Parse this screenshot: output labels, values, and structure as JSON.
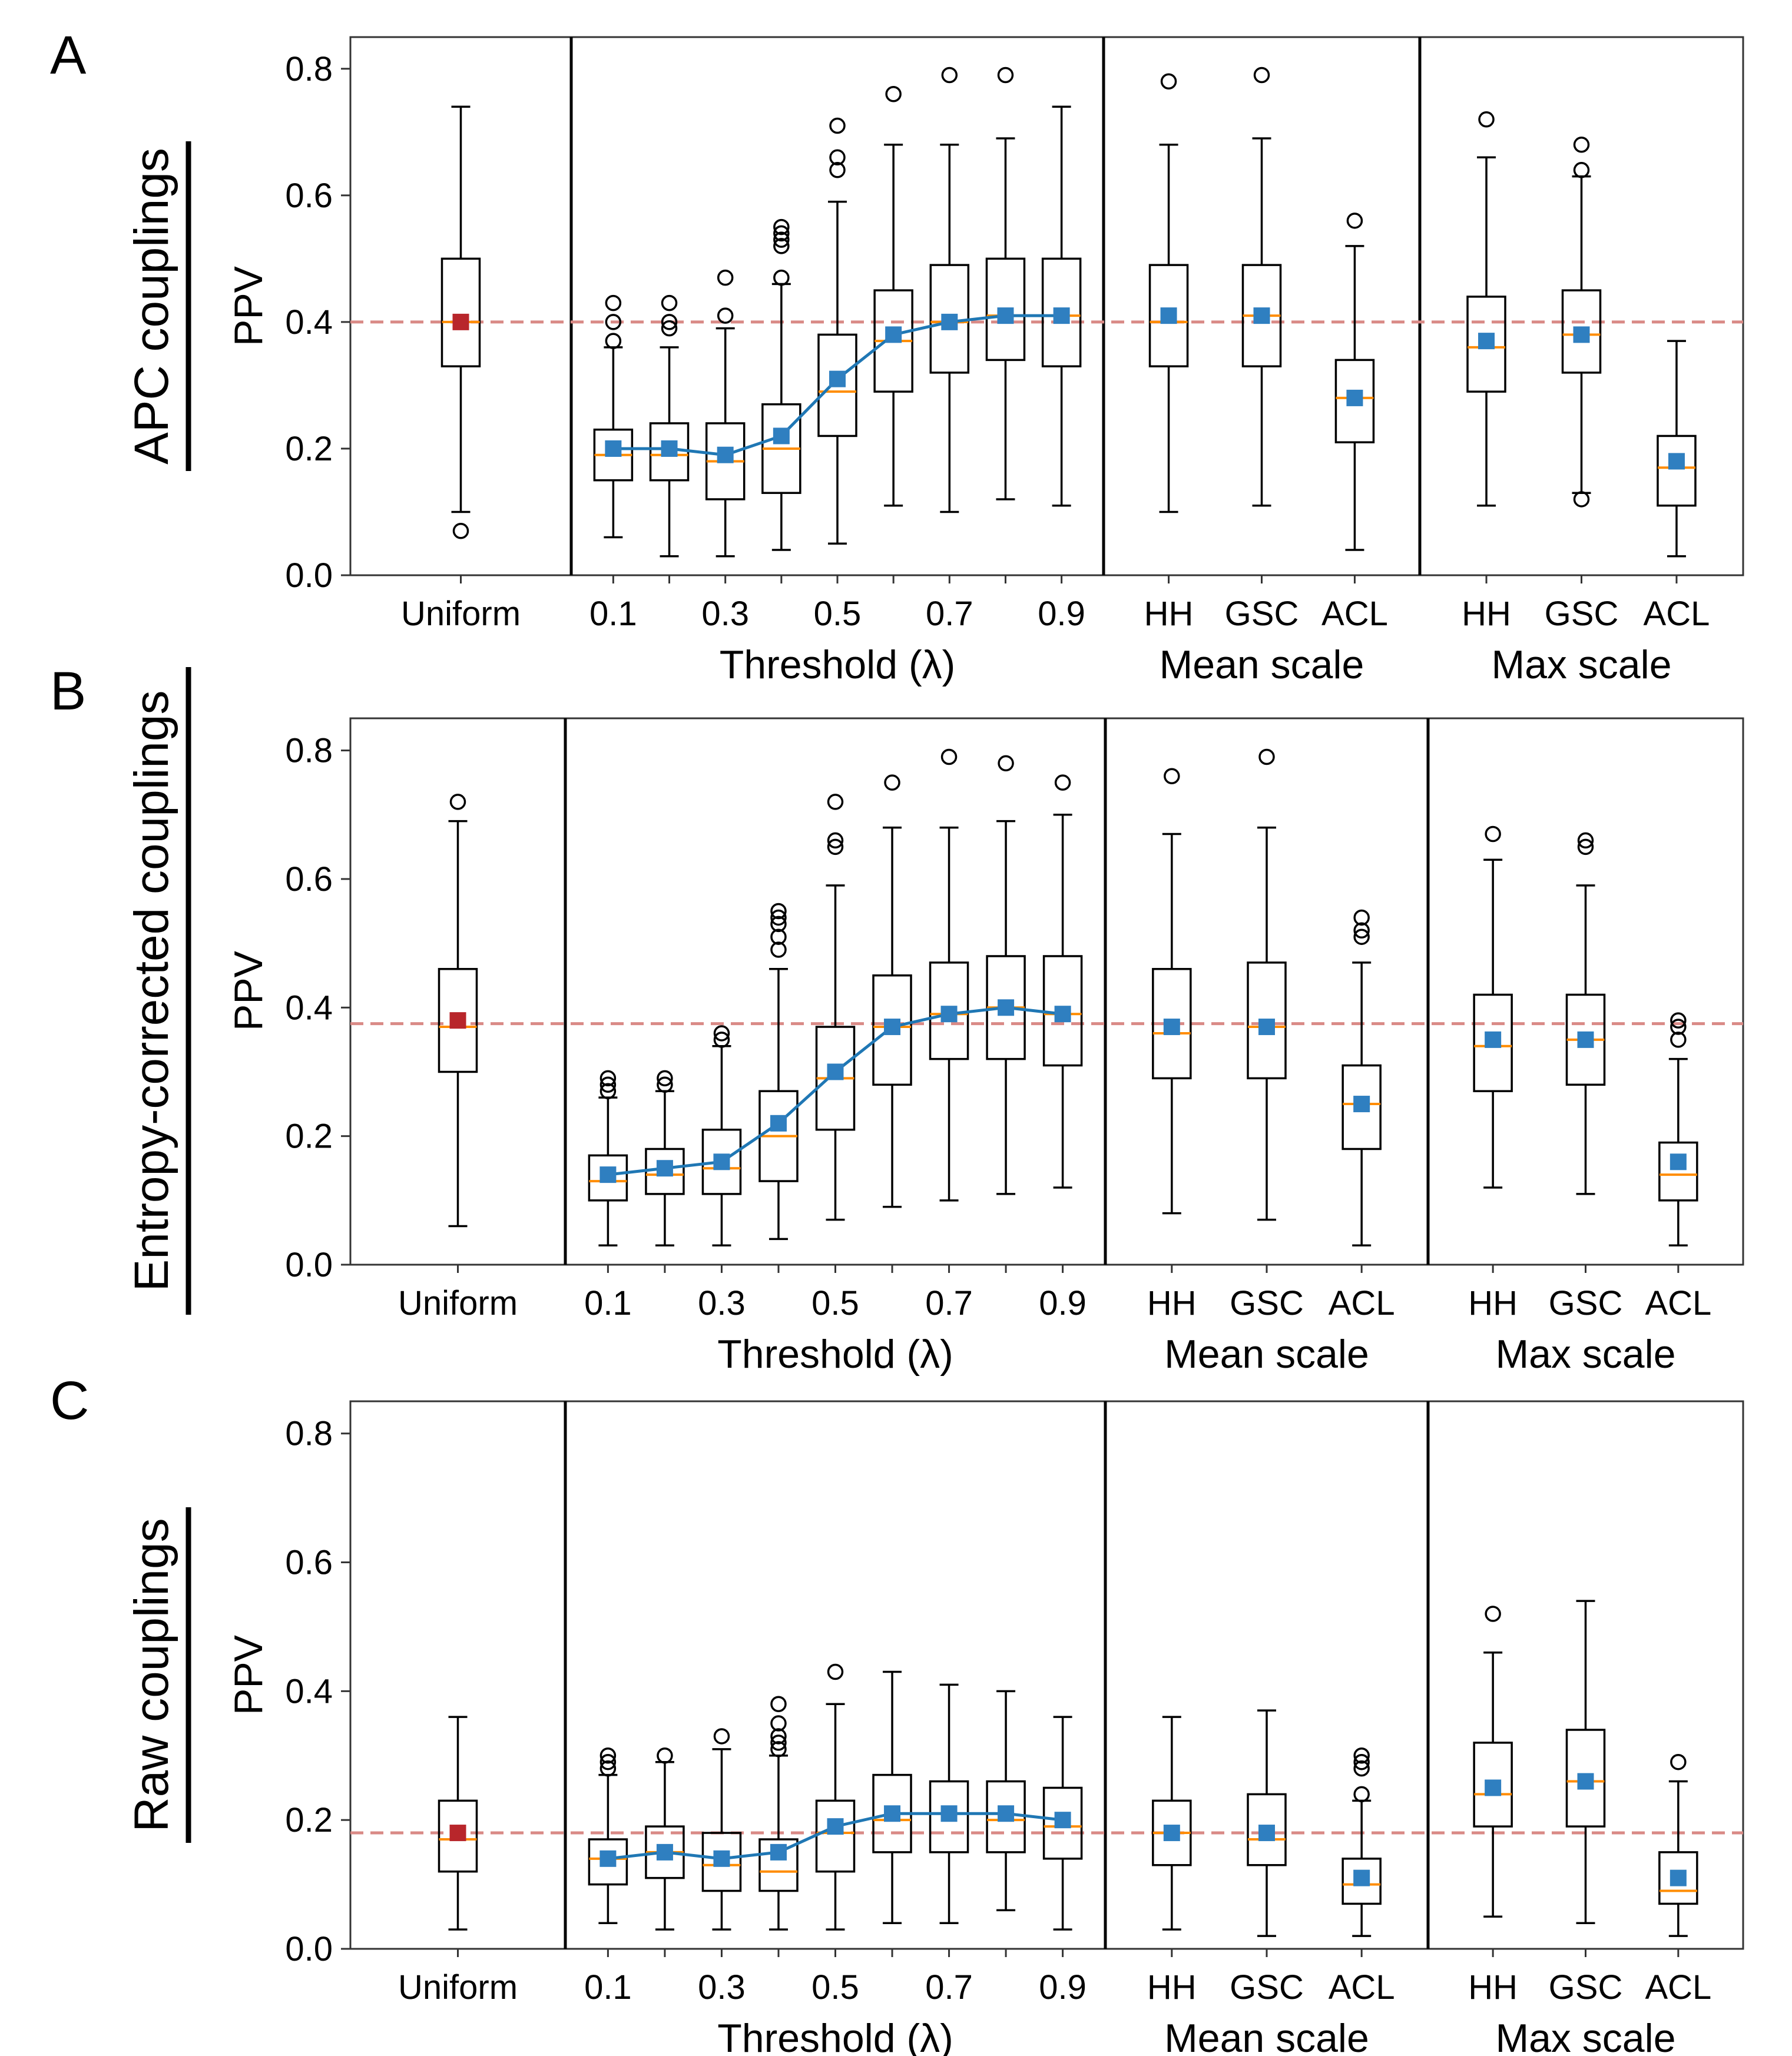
{
  "figure": {
    "colors": {
      "baseline_marker": "#b8262b",
      "mean_marker": "#2f7fc0",
      "line": "#1f77b4",
      "median": "#ff8c00",
      "reference_line": "#d98a86",
      "axes": "#000000"
    },
    "y_axis": {
      "label": "PPV",
      "ylim": [
        0,
        0.85
      ],
      "ticks": [
        0.0,
        0.2,
        0.4,
        0.6,
        0.8
      ],
      "tick_labels": [
        "0.0",
        "0.2",
        "0.4",
        "0.6",
        "0.8"
      ]
    },
    "groups": [
      {
        "id": "uniform",
        "xlabel": "",
        "categories": [
          "Uniform"
        ],
        "tick_labels": [
          "Uniform"
        ]
      },
      {
        "id": "threshold",
        "xlabel": "Threshold (λ)",
        "categories": [
          "0.1",
          "0.2",
          "0.3",
          "0.4",
          "0.5",
          "0.6",
          "0.7",
          "0.8",
          "0.9"
        ],
        "tick_labels": [
          "0.1",
          "",
          "0.3",
          "",
          "0.5",
          "",
          "0.7",
          "",
          "0.9"
        ]
      },
      {
        "id": "mean",
        "xlabel": "Mean scale",
        "categories": [
          "HH",
          "GSC",
          "ACL"
        ],
        "tick_labels": [
          "HH",
          "GSC",
          "ACL"
        ]
      },
      {
        "id": "max",
        "xlabel": "Max scale",
        "categories": [
          "HH",
          "GSC",
          "ACL"
        ],
        "tick_labels": [
          "HH",
          "GSC",
          "ACL"
        ]
      }
    ]
  },
  "chart_data": [
    {
      "type": "box",
      "panel_letter": "A",
      "title": "APC couplings",
      "ylabel": "PPV",
      "ylim": [
        0,
        0.85
      ],
      "reference_value": 0.4,
      "series": {
        "uniform": [
          {
            "cat": "Uniform",
            "wlo": 0.1,
            "q1": 0.33,
            "med": 0.4,
            "q3": 0.5,
            "whi": 0.74,
            "mean": 0.4,
            "fliers": [
              0.07
            ]
          }
        ],
        "threshold": [
          {
            "cat": "0.1",
            "wlo": 0.06,
            "q1": 0.15,
            "med": 0.19,
            "q3": 0.23,
            "whi": 0.36,
            "mean": 0.2,
            "fliers": [
              0.37,
              0.4,
              0.43
            ]
          },
          {
            "cat": "0.2",
            "wlo": 0.03,
            "q1": 0.15,
            "med": 0.19,
            "q3": 0.24,
            "whi": 0.36,
            "mean": 0.2,
            "fliers": [
              0.39,
              0.4,
              0.43
            ]
          },
          {
            "cat": "0.3",
            "wlo": 0.03,
            "q1": 0.12,
            "med": 0.18,
            "q3": 0.24,
            "whi": 0.39,
            "mean": 0.19,
            "fliers": [
              0.41,
              0.47
            ]
          },
          {
            "cat": "0.4",
            "wlo": 0.04,
            "q1": 0.13,
            "med": 0.2,
            "q3": 0.27,
            "whi": 0.46,
            "mean": 0.22,
            "fliers": [
              0.47,
              0.52,
              0.53,
              0.54,
              0.55
            ]
          },
          {
            "cat": "0.5",
            "wlo": 0.05,
            "q1": 0.22,
            "med": 0.29,
            "q3": 0.38,
            "whi": 0.59,
            "mean": 0.31,
            "fliers": [
              0.64,
              0.66,
              0.71
            ]
          },
          {
            "cat": "0.6",
            "wlo": 0.11,
            "q1": 0.29,
            "med": 0.37,
            "q3": 0.45,
            "whi": 0.68,
            "mean": 0.38,
            "fliers": [
              0.76
            ]
          },
          {
            "cat": "0.7",
            "wlo": 0.1,
            "q1": 0.32,
            "med": 0.4,
            "q3": 0.49,
            "whi": 0.68,
            "mean": 0.4,
            "fliers": [
              0.79
            ]
          },
          {
            "cat": "0.8",
            "wlo": 0.12,
            "q1": 0.34,
            "med": 0.41,
            "q3": 0.5,
            "whi": 0.69,
            "mean": 0.41,
            "fliers": [
              0.79
            ]
          },
          {
            "cat": "0.9",
            "wlo": 0.11,
            "q1": 0.33,
            "med": 0.41,
            "q3": 0.5,
            "whi": 0.74,
            "mean": 0.41,
            "fliers": []
          }
        ],
        "mean": [
          {
            "cat": "HH",
            "wlo": 0.1,
            "q1": 0.33,
            "med": 0.4,
            "q3": 0.49,
            "whi": 0.68,
            "mean": 0.41,
            "fliers": [
              0.78
            ]
          },
          {
            "cat": "GSC",
            "wlo": 0.11,
            "q1": 0.33,
            "med": 0.41,
            "q3": 0.49,
            "whi": 0.69,
            "mean": 0.41,
            "fliers": [
              0.79
            ]
          },
          {
            "cat": "ACL",
            "wlo": 0.04,
            "q1": 0.21,
            "med": 0.28,
            "q3": 0.34,
            "whi": 0.52,
            "mean": 0.28,
            "fliers": [
              0.56
            ]
          }
        ],
        "max": [
          {
            "cat": "HH",
            "wlo": 0.11,
            "q1": 0.29,
            "med": 0.36,
            "q3": 0.44,
            "whi": 0.66,
            "mean": 0.37,
            "fliers": [
              0.72
            ]
          },
          {
            "cat": "GSC",
            "wlo": 0.13,
            "q1": 0.32,
            "med": 0.38,
            "q3": 0.45,
            "whi": 0.63,
            "mean": 0.38,
            "fliers": [
              0.12,
              0.64,
              0.68
            ]
          },
          {
            "cat": "ACL",
            "wlo": 0.03,
            "q1": 0.11,
            "med": 0.17,
            "q3": 0.22,
            "whi": 0.37,
            "mean": 0.18,
            "fliers": []
          }
        ]
      }
    },
    {
      "type": "box",
      "panel_letter": "B",
      "title": "Entropy-corrected couplings",
      "ylabel": "PPV",
      "ylim": [
        0,
        0.85
      ],
      "reference_value": 0.375,
      "series": {
        "uniform": [
          {
            "cat": "Uniform",
            "wlo": 0.06,
            "q1": 0.3,
            "med": 0.37,
            "q3": 0.46,
            "whi": 0.69,
            "mean": 0.38,
            "fliers": [
              0.72
            ]
          }
        ],
        "threshold": [
          {
            "cat": "0.1",
            "wlo": 0.03,
            "q1": 0.1,
            "med": 0.13,
            "q3": 0.17,
            "whi": 0.26,
            "mean": 0.14,
            "fliers": [
              0.27,
              0.28,
              0.29
            ]
          },
          {
            "cat": "0.2",
            "wlo": 0.03,
            "q1": 0.11,
            "med": 0.14,
            "q3": 0.18,
            "whi": 0.27,
            "mean": 0.15,
            "fliers": [
              0.28,
              0.29
            ]
          },
          {
            "cat": "0.3",
            "wlo": 0.03,
            "q1": 0.11,
            "med": 0.15,
            "q3": 0.21,
            "whi": 0.34,
            "mean": 0.16,
            "fliers": [
              0.35,
              0.36
            ]
          },
          {
            "cat": "0.4",
            "wlo": 0.04,
            "q1": 0.13,
            "med": 0.2,
            "q3": 0.27,
            "whi": 0.46,
            "mean": 0.22,
            "fliers": [
              0.49,
              0.51,
              0.53,
              0.54,
              0.55
            ]
          },
          {
            "cat": "0.5",
            "wlo": 0.07,
            "q1": 0.21,
            "med": 0.29,
            "q3": 0.37,
            "whi": 0.59,
            "mean": 0.3,
            "fliers": [
              0.65,
              0.66,
              0.72
            ]
          },
          {
            "cat": "0.6",
            "wlo": 0.09,
            "q1": 0.28,
            "med": 0.37,
            "q3": 0.45,
            "whi": 0.68,
            "mean": 0.37,
            "fliers": [
              0.75
            ]
          },
          {
            "cat": "0.7",
            "wlo": 0.1,
            "q1": 0.32,
            "med": 0.39,
            "q3": 0.47,
            "whi": 0.68,
            "mean": 0.39,
            "fliers": [
              0.79
            ]
          },
          {
            "cat": "0.8",
            "wlo": 0.11,
            "q1": 0.32,
            "med": 0.4,
            "q3": 0.48,
            "whi": 0.69,
            "mean": 0.4,
            "fliers": [
              0.78
            ]
          },
          {
            "cat": "0.9",
            "wlo": 0.12,
            "q1": 0.31,
            "med": 0.39,
            "q3": 0.48,
            "whi": 0.7,
            "mean": 0.39,
            "fliers": [
              0.75
            ]
          }
        ],
        "mean": [
          {
            "cat": "HH",
            "wlo": 0.08,
            "q1": 0.29,
            "med": 0.36,
            "q3": 0.46,
            "whi": 0.67,
            "mean": 0.37,
            "fliers": [
              0.76
            ]
          },
          {
            "cat": "GSC",
            "wlo": 0.07,
            "q1": 0.29,
            "med": 0.37,
            "q3": 0.47,
            "whi": 0.68,
            "mean": 0.37,
            "fliers": [
              0.79
            ]
          },
          {
            "cat": "ACL",
            "wlo": 0.03,
            "q1": 0.18,
            "med": 0.25,
            "q3": 0.31,
            "whi": 0.47,
            "mean": 0.25,
            "fliers": [
              0.51,
              0.52,
              0.54
            ]
          }
        ],
        "max": [
          {
            "cat": "HH",
            "wlo": 0.12,
            "q1": 0.27,
            "med": 0.34,
            "q3": 0.42,
            "whi": 0.63,
            "mean": 0.35,
            "fliers": [
              0.67
            ]
          },
          {
            "cat": "GSC",
            "wlo": 0.11,
            "q1": 0.28,
            "med": 0.35,
            "q3": 0.42,
            "whi": 0.59,
            "mean": 0.35,
            "fliers": [
              0.65,
              0.66
            ]
          },
          {
            "cat": "ACL",
            "wlo": 0.03,
            "q1": 0.1,
            "med": 0.14,
            "q3": 0.19,
            "whi": 0.32,
            "mean": 0.16,
            "fliers": [
              0.35,
              0.37,
              0.38
            ]
          }
        ]
      }
    },
    {
      "type": "box",
      "panel_letter": "C",
      "title": "Raw couplings",
      "ylabel": "PPV",
      "ylim": [
        0,
        0.85
      ],
      "reference_value": 0.18,
      "series": {
        "uniform": [
          {
            "cat": "Uniform",
            "wlo": 0.03,
            "q1": 0.12,
            "med": 0.17,
            "q3": 0.23,
            "whi": 0.36,
            "mean": 0.18,
            "fliers": []
          }
        ],
        "threshold": [
          {
            "cat": "0.1",
            "wlo": 0.04,
            "q1": 0.1,
            "med": 0.14,
            "q3": 0.17,
            "whi": 0.27,
            "mean": 0.14,
            "fliers": [
              0.28,
              0.29,
              0.3
            ]
          },
          {
            "cat": "0.2",
            "wlo": 0.03,
            "q1": 0.11,
            "med": 0.15,
            "q3": 0.19,
            "whi": 0.29,
            "mean": 0.15,
            "fliers": [
              0.3
            ]
          },
          {
            "cat": "0.3",
            "wlo": 0.03,
            "q1": 0.09,
            "med": 0.13,
            "q3": 0.18,
            "whi": 0.31,
            "mean": 0.14,
            "fliers": [
              0.33
            ]
          },
          {
            "cat": "0.4",
            "wlo": 0.03,
            "q1": 0.09,
            "med": 0.12,
            "q3": 0.17,
            "whi": 0.3,
            "mean": 0.15,
            "fliers": [
              0.31,
              0.32,
              0.33,
              0.35,
              0.38
            ]
          },
          {
            "cat": "0.5",
            "wlo": 0.03,
            "q1": 0.12,
            "med": 0.18,
            "q3": 0.23,
            "whi": 0.38,
            "mean": 0.19,
            "fliers": [
              0.43
            ]
          },
          {
            "cat": "0.6",
            "wlo": 0.04,
            "q1": 0.15,
            "med": 0.2,
            "q3": 0.27,
            "whi": 0.43,
            "mean": 0.21,
            "fliers": []
          },
          {
            "cat": "0.7",
            "wlo": 0.04,
            "q1": 0.15,
            "med": 0.21,
            "q3": 0.26,
            "whi": 0.41,
            "mean": 0.21,
            "fliers": []
          },
          {
            "cat": "0.8",
            "wlo": 0.06,
            "q1": 0.15,
            "med": 0.2,
            "q3": 0.26,
            "whi": 0.4,
            "mean": 0.21,
            "fliers": []
          },
          {
            "cat": "0.9",
            "wlo": 0.03,
            "q1": 0.14,
            "med": 0.19,
            "q3": 0.25,
            "whi": 0.36,
            "mean": 0.2,
            "fliers": []
          }
        ],
        "mean": [
          {
            "cat": "HH",
            "wlo": 0.03,
            "q1": 0.13,
            "med": 0.18,
            "q3": 0.23,
            "whi": 0.36,
            "mean": 0.18,
            "fliers": []
          },
          {
            "cat": "GSC",
            "wlo": 0.02,
            "q1": 0.13,
            "med": 0.17,
            "q3": 0.24,
            "whi": 0.37,
            "mean": 0.18,
            "fliers": []
          },
          {
            "cat": "ACL",
            "wlo": 0.02,
            "q1": 0.07,
            "med": 0.1,
            "q3": 0.14,
            "whi": 0.23,
            "mean": 0.11,
            "fliers": [
              0.24,
              0.28,
              0.29,
              0.3
            ]
          }
        ],
        "max": [
          {
            "cat": "HH",
            "wlo": 0.05,
            "q1": 0.19,
            "med": 0.24,
            "q3": 0.32,
            "whi": 0.46,
            "mean": 0.25,
            "fliers": [
              0.52
            ]
          },
          {
            "cat": "GSC",
            "wlo": 0.04,
            "q1": 0.19,
            "med": 0.26,
            "q3": 0.34,
            "whi": 0.54,
            "mean": 0.26,
            "fliers": []
          },
          {
            "cat": "ACL",
            "wlo": 0.02,
            "q1": 0.07,
            "med": 0.09,
            "q3": 0.15,
            "whi": 0.26,
            "mean": 0.11,
            "fliers": [
              0.29
            ]
          }
        ]
      }
    }
  ]
}
